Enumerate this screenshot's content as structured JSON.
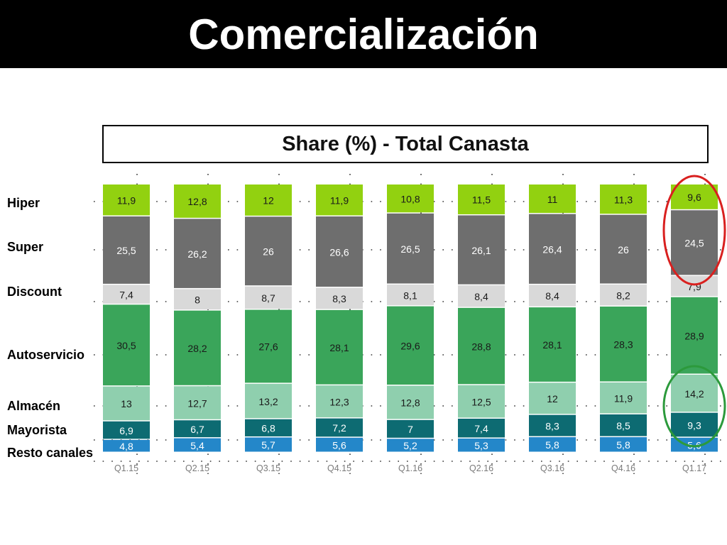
{
  "title": "Comercialización",
  "chart_data": {
    "type": "bar",
    "stacked": true,
    "title": "Share (%) -  Total Canasta",
    "categories": [
      "Q1.15",
      "Q2.15",
      "Q3.15",
      "Q4.15",
      "Q1.16",
      "Q2.16",
      "Q3.16",
      "Q4.16",
      "Q1.17"
    ],
    "series": [
      {
        "name": "Resto canales",
        "color": "#2487c9",
        "label_color": "#ffffff",
        "values": [
          4.8,
          5.4,
          5.7,
          5.6,
          5.2,
          5.3,
          5.8,
          5.8,
          5.6
        ],
        "labels": [
          "4,8",
          "5,4",
          "5,7",
          "5,6",
          "5,2",
          "5,3",
          "5,8",
          "5,8",
          "5,6"
        ]
      },
      {
        "name": "Mayorista",
        "color": "#0d6b72",
        "label_color": "#ffffff",
        "values": [
          6.9,
          6.7,
          6.8,
          7.2,
          7,
          7.4,
          8.3,
          8.5,
          9.3
        ],
        "labels": [
          "6,9",
          "6,7",
          "6,8",
          "7,2",
          "7",
          "7,4",
          "8,3",
          "8,5",
          "9,3"
        ]
      },
      {
        "name": "Almacén",
        "color": "#8fcfae",
        "label_color": "#1a1a1a",
        "values": [
          13,
          12.7,
          13.2,
          12.3,
          12.8,
          12.5,
          12,
          11.9,
          14.2
        ],
        "labels": [
          "13",
          "12,7",
          "13,2",
          "12,3",
          "12,8",
          "12,5",
          "12",
          "11,9",
          "14,2"
        ]
      },
      {
        "name": "Autoservicio",
        "color": "#3aa55a",
        "label_color": "#1a1a1a",
        "values": [
          30.5,
          28.2,
          27.6,
          28.1,
          29.6,
          28.8,
          28.1,
          28.3,
          28.9
        ],
        "labels": [
          "30,5",
          "28,2",
          "27,6",
          "28,1",
          "29,6",
          "28,8",
          "28,1",
          "28,3",
          "28,9"
        ]
      },
      {
        "name": "Discount",
        "color": "#d9d9d9",
        "label_color": "#1a1a1a",
        "values": [
          7.4,
          8,
          8.7,
          8.3,
          8.1,
          8.4,
          8.4,
          8.2,
          7.9
        ],
        "labels": [
          "7,4",
          "8",
          "8,7",
          "8,3",
          "8,1",
          "8,4",
          "8,4",
          "8,2",
          "7,9"
        ]
      },
      {
        "name": "Super",
        "color": "#6e6e6e",
        "label_color": "#ffffff",
        "values": [
          25.5,
          26.2,
          26,
          26.6,
          26.5,
          26.1,
          26.4,
          26,
          24.5
        ],
        "labels": [
          "25,5",
          "26,2",
          "26",
          "26,6",
          "26,5",
          "26,1",
          "26,4",
          "26",
          "24,5"
        ]
      },
      {
        "name": "Hiper",
        "color": "#92d110",
        "label_color": "#1a1a1a",
        "values": [
          11.9,
          12.8,
          12,
          11.9,
          10.8,
          11.5,
          11,
          11.3,
          9.6
        ],
        "labels": [
          "11,9",
          "12,8",
          "12",
          "11,9",
          "10,8",
          "11,5",
          "11",
          "11,3",
          "9,6"
        ]
      }
    ],
    "highlights": [
      {
        "series": [
          "Hiper",
          "Super"
        ],
        "category": "Q1.17",
        "color": "#d9201f"
      },
      {
        "series": [
          "Almacén",
          "Mayorista"
        ],
        "category": "Q1.17",
        "color": "#2c9a3c"
      }
    ],
    "grid": true,
    "legend": "left"
  }
}
